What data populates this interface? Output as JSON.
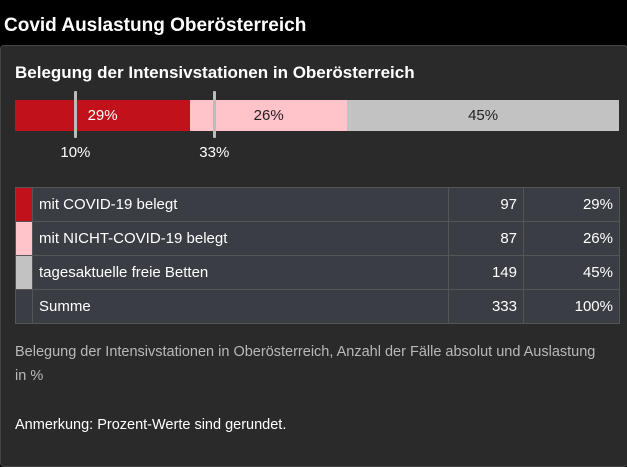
{
  "header": {
    "title": "Covid Auslastung Oberösterreich"
  },
  "panel": {
    "title": "Belegung der Intensivstationen in Oberösterreich",
    "bar": {
      "values": [
        29,
        26,
        45
      ],
      "value_labels": [
        "29%",
        "26%",
        "45%"
      ],
      "colors": [
        "#c1111b",
        "#ffc3c9",
        "#c2c2c2"
      ],
      "label_colors": [
        "#ffffff",
        "#222222",
        "#222222"
      ],
      "xlim": [
        0,
        100
      ],
      "markers": {
        "values": [
          10,
          33
        ],
        "labels": [
          "10%",
          "33%"
        ]
      }
    },
    "table": {
      "rows": [
        {
          "color": "#c1111b",
          "label": "mit COVID-19 belegt",
          "count": "97",
          "percent": "29%"
        },
        {
          "color": "#ffc3c9",
          "label": "mit NICHT-COVID-19 belegt",
          "count": "87",
          "percent": "26%"
        },
        {
          "color": "#c2c2c2",
          "label": "tagesaktuelle freie Betten",
          "count": "149",
          "percent": "45%"
        },
        {
          "color": "#3a3d44",
          "label": "Summe",
          "count": "333",
          "percent": "100%"
        }
      ]
    },
    "caption": "Belegung der Intensivstationen in Oberösterreich, Anzahl der Fälle absolut und Auslastung in %",
    "note": "Anmerkung: Prozent-Werte sind gerundet."
  }
}
